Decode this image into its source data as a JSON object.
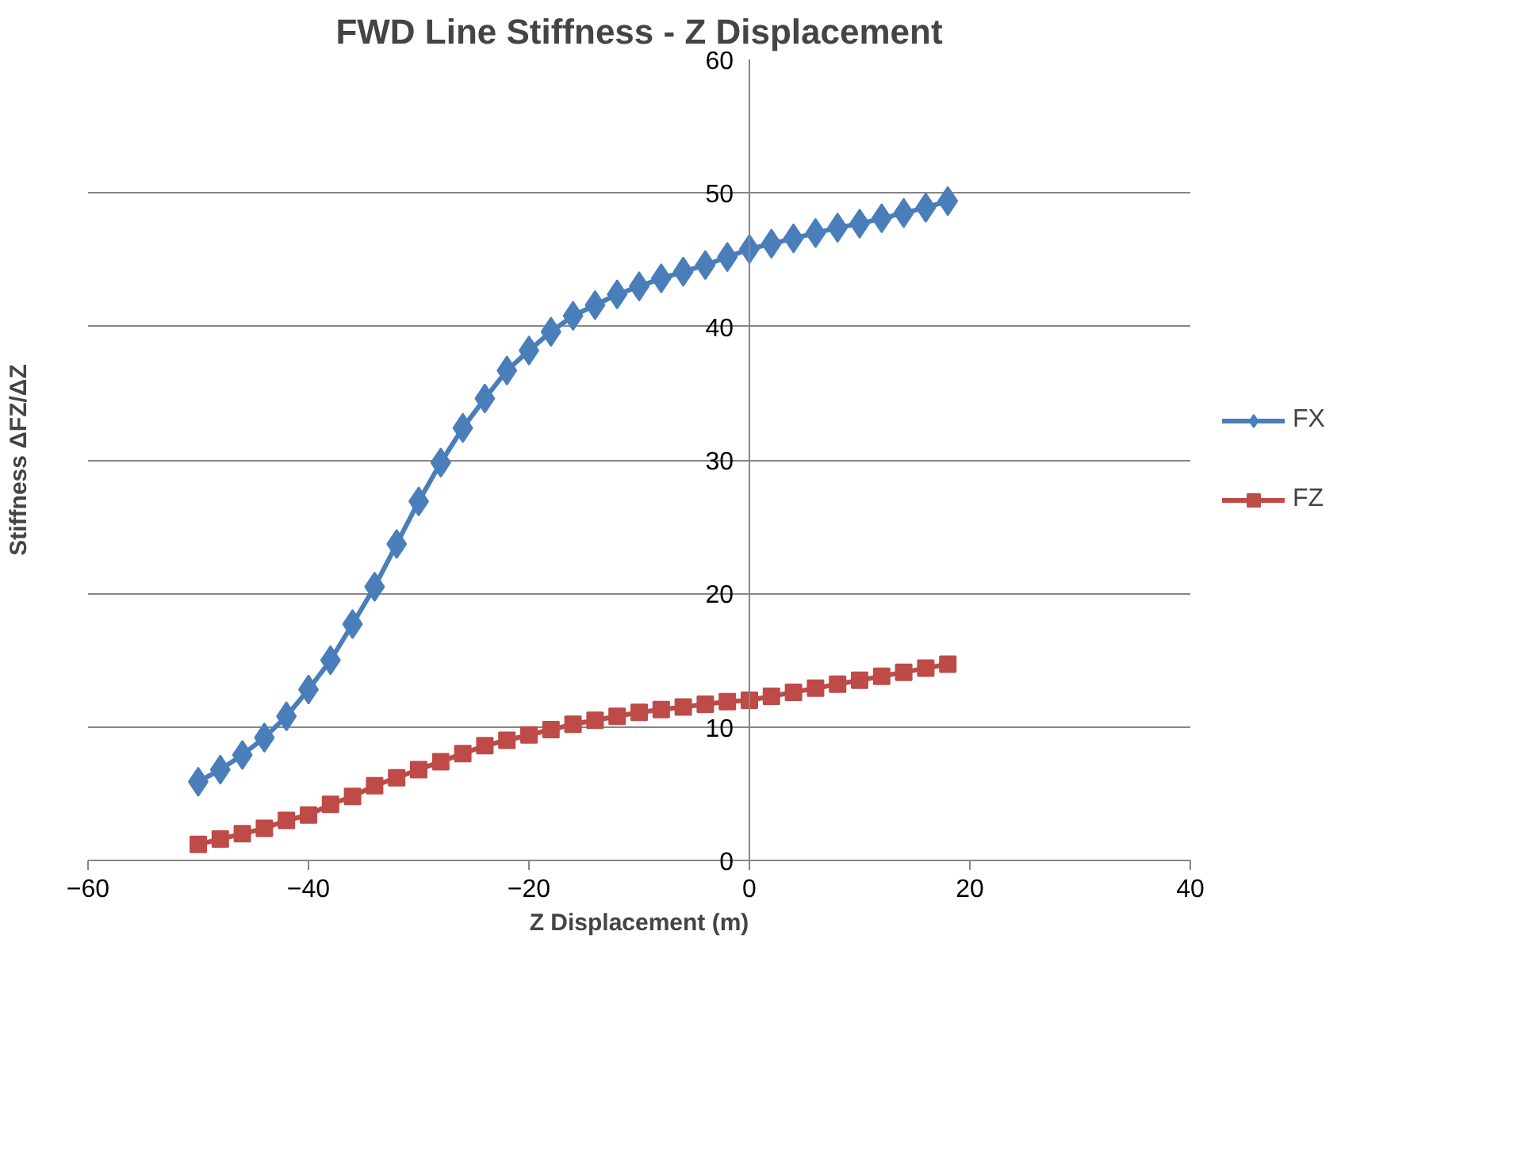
{
  "chart_data": {
    "type": "line",
    "title": "FWD Line Stiffness - Z Displacement",
    "xlabel": "Z Displacement (m)",
    "ylabel": "Stiffness ΔFZ/ΔZ",
    "x": [
      -50,
      -48,
      -46,
      -44,
      -42,
      -40,
      -38,
      -36,
      -34,
      -32,
      -30,
      -28,
      -26,
      -24,
      -22,
      -20,
      -18,
      -16,
      -14,
      -12,
      -10,
      -8,
      -6,
      -4,
      -2,
      0,
      2,
      4,
      6,
      8,
      10,
      12,
      14,
      16,
      18
    ],
    "series": [
      {
        "name": "FX",
        "color": "#4a7ebb",
        "marker": "diamond",
        "values": [
          5.9,
          6.8,
          7.9,
          9.2,
          10.8,
          12.8,
          15.0,
          17.7,
          20.5,
          23.7,
          26.9,
          29.8,
          32.4,
          34.6,
          36.7,
          38.2,
          39.6,
          40.8,
          41.6,
          42.4,
          43.0,
          43.6,
          44.1,
          44.6,
          45.2,
          45.8,
          46.2,
          46.6,
          47.0,
          47.4,
          47.7,
          48.1,
          48.5,
          48.9,
          49.4
        ]
      },
      {
        "name": "FZ",
        "color": "#be4b48",
        "marker": "square",
        "values": [
          1.2,
          1.6,
          2.0,
          2.4,
          3.0,
          3.4,
          4.2,
          4.8,
          5.6,
          6.2,
          6.8,
          7.4,
          8.0,
          8.6,
          9.0,
          9.4,
          9.8,
          10.2,
          10.5,
          10.8,
          11.1,
          11.3,
          11.5,
          11.7,
          11.9,
          12.0,
          12.3,
          12.6,
          12.9,
          13.2,
          13.5,
          13.8,
          14.1,
          14.4,
          14.7
        ]
      }
    ],
    "xlim": [
      -60,
      40
    ],
    "xticks": [
      -60,
      -40,
      -20,
      0,
      20,
      40
    ],
    "ylim": [
      0,
      60
    ],
    "yticks": [
      0,
      10,
      20,
      30,
      40,
      50,
      60
    ],
    "grid": "y",
    "legend": "right",
    "line_style": "solid"
  }
}
